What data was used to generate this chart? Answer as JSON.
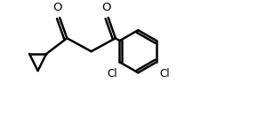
{
  "bg_color": "#ffffff",
  "line_color": "#000000",
  "line_width": 1.8,
  "font_size": 8.5,
  "figsize": [
    2.98,
    1.38
  ],
  "dpi": 100,
  "xlim": [
    0,
    10.5
  ],
  "ylim": [
    0,
    4.8
  ]
}
